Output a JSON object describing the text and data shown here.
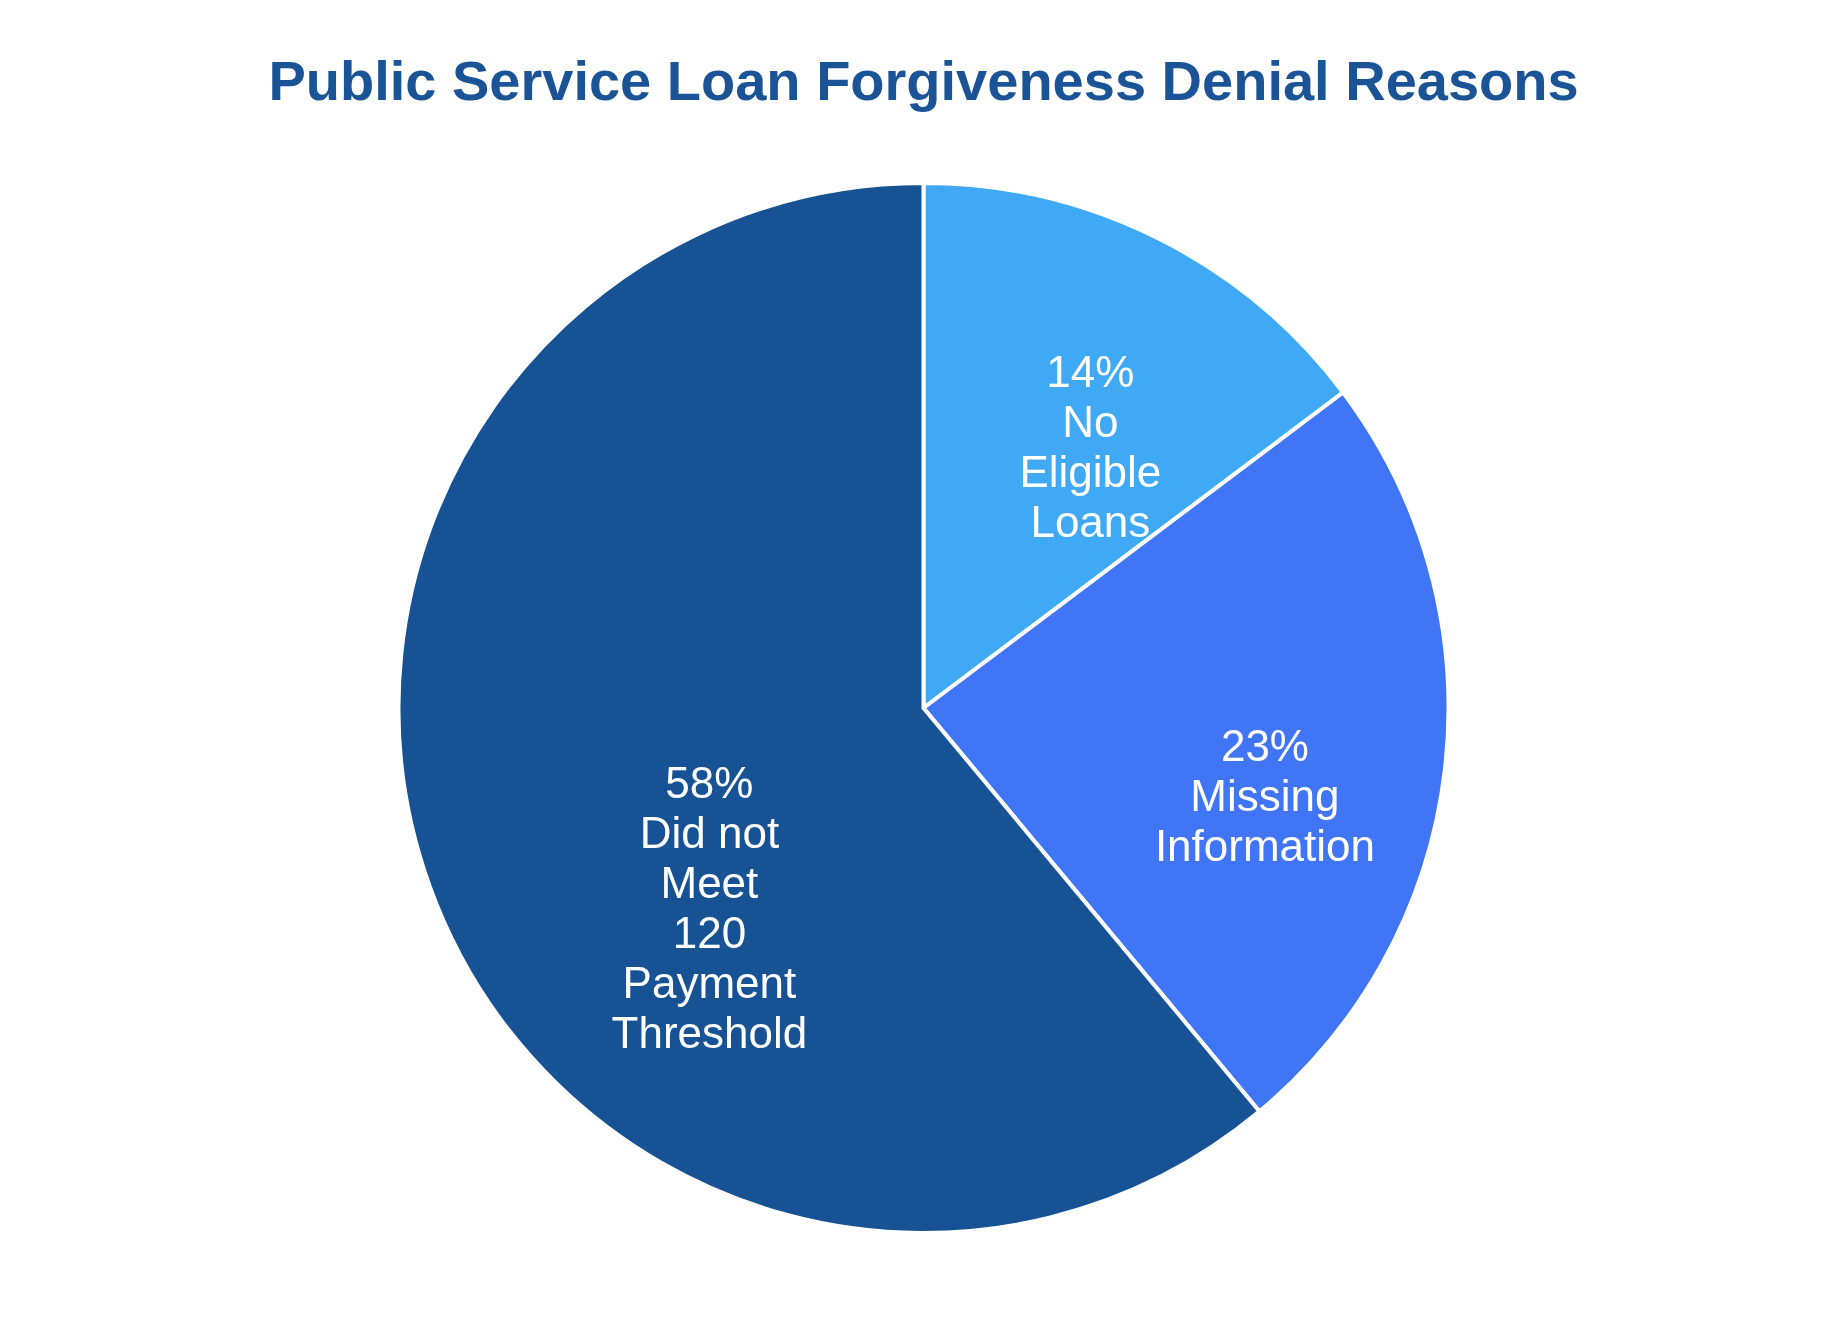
{
  "chart_data": {
    "type": "pie",
    "title": "Public Service Loan Forgiveness Denial Reasons",
    "categories": [
      "No Eligible Loans",
      "Missing Information",
      "Did not Meet 120 Payment Threshold"
    ],
    "values": [
      14,
      23,
      58
    ],
    "value_labels": [
      "14%",
      "23%",
      "58%"
    ],
    "colors": [
      "#3fa9f5",
      "#4076f5",
      "#175394"
    ]
  }
}
